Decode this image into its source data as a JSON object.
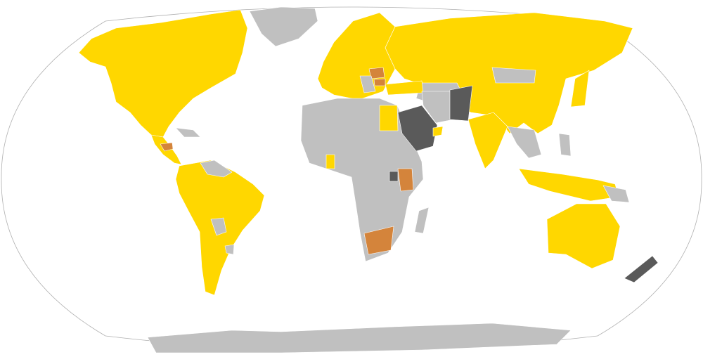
{
  "map": {
    "projection": "robinson",
    "colors": {
      "yellow": "#FFD700",
      "gray": "#C0C0C0",
      "dark": "#5A5A5A",
      "orange": "#D4843B",
      "ocean": "#FFFFFF",
      "outline": "#B0B0B0"
    },
    "regions": [
      {
        "id": "north-america",
        "fill": "yellow"
      },
      {
        "id": "greenland",
        "fill": "gray"
      },
      {
        "id": "central-america",
        "fill": "yellow"
      },
      {
        "id": "honduras",
        "fill": "orange"
      },
      {
        "id": "caribbean",
        "fill": "gray"
      },
      {
        "id": "south-america",
        "fill": "yellow"
      },
      {
        "id": "venezuela-guianas",
        "fill": "gray"
      },
      {
        "id": "bolivia-paraguay",
        "fill": "gray"
      },
      {
        "id": "uruguay",
        "fill": "gray"
      },
      {
        "id": "europe",
        "fill": "yellow"
      },
      {
        "id": "romania",
        "fill": "orange"
      },
      {
        "id": "bulgaria",
        "fill": "orange"
      },
      {
        "id": "balkans",
        "fill": "gray"
      },
      {
        "id": "russia-asia",
        "fill": "yellow"
      },
      {
        "id": "mongolia",
        "fill": "gray"
      },
      {
        "id": "central-asia",
        "fill": "gray"
      },
      {
        "id": "turkey",
        "fill": "yellow"
      },
      {
        "id": "africa",
        "fill": "gray"
      },
      {
        "id": "egypt",
        "fill": "yellow"
      },
      {
        "id": "ghana",
        "fill": "yellow"
      },
      {
        "id": "kenya",
        "fill": "orange"
      },
      {
        "id": "uganda",
        "fill": "dark"
      },
      {
        "id": "south-africa",
        "fill": "orange"
      },
      {
        "id": "madagascar",
        "fill": "gray"
      },
      {
        "id": "saudi-arabia",
        "fill": "dark"
      },
      {
        "id": "uae",
        "fill": "yellow"
      },
      {
        "id": "iran",
        "fill": "gray"
      },
      {
        "id": "pakistan",
        "fill": "dark"
      },
      {
        "id": "india",
        "fill": "yellow"
      },
      {
        "id": "southeast-asia",
        "fill": "gray"
      },
      {
        "id": "japan",
        "fill": "yellow"
      },
      {
        "id": "philippines",
        "fill": "gray"
      },
      {
        "id": "indonesia",
        "fill": "yellow"
      },
      {
        "id": "papua",
        "fill": "gray"
      },
      {
        "id": "australia",
        "fill": "yellow"
      },
      {
        "id": "new-zealand",
        "fill": "dark"
      },
      {
        "id": "antarctica",
        "fill": "gray"
      }
    ]
  }
}
